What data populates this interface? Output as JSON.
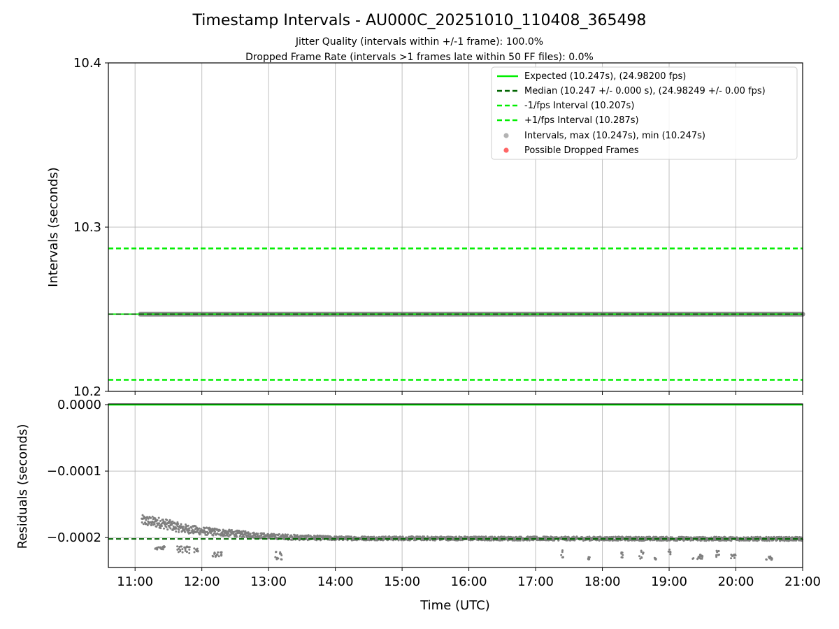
{
  "chart_data": [
    {
      "type": "line",
      "panel": "top",
      "title": "Timestamp Intervals - AU000C_20251010_110408_365498",
      "subtitle_lines": [
        "Jitter Quality (intervals within +/-1 frame): 100.0%",
        "Dropped Frame Rate (intervals >1 frames late within 50 FF files): 0.0%"
      ],
      "xlabel": "",
      "ylabel": "Intervals (seconds)",
      "xlim_hours": [
        10.6,
        21.0
      ],
      "ylim": [
        10.2,
        10.4
      ],
      "yticks": [
        10.2,
        10.3,
        10.4
      ],
      "ytick_labels": [
        "10.2",
        "10.3",
        "10.4"
      ],
      "grid": true,
      "legend_position": "top-right",
      "legend": [
        {
          "label": "Expected (10.247s), (24.98200 fps)",
          "style": "solid",
          "color": "#00ee00"
        },
        {
          "label": "Median (10.247 +/- 0.000 s), (24.98249 +/- 0.00 fps)",
          "style": "dashed",
          "color": "#006400"
        },
        {
          "label": "-1/fps Interval (10.207s)",
          "style": "dashed",
          "color": "#00ee00"
        },
        {
          "label": "+1/fps Interval (10.287s)",
          "style": "dashed",
          "color": "#00ee00"
        },
        {
          "label": "Intervals, max (10.247s), min (10.247s)",
          "style": "marker",
          "color": "#808080"
        },
        {
          "label": "Possible Dropped Frames",
          "style": "marker",
          "color": "#ff0000"
        }
      ],
      "series": [
        {
          "name": "Expected",
          "y": 10.247
        },
        {
          "name": "Median",
          "y": 10.247
        },
        {
          "name": "-1/fps Interval",
          "y": 10.207
        },
        {
          "name": "+1/fps Interval",
          "y": 10.287
        },
        {
          "name": "Intervals",
          "x_start_hours": 11.08,
          "x_end_hours": 21.0,
          "y": 10.247
        }
      ]
    },
    {
      "type": "scatter",
      "panel": "bottom",
      "xlabel": "Time (UTC)",
      "ylabel": "Residuals (seconds)",
      "xlim_hours": [
        10.6,
        21.0
      ],
      "ylim": [
        -0.000245,
        1e-06
      ],
      "yticks": [
        0.0,
        -0.0001,
        -0.0002
      ],
      "ytick_labels": [
        "0.0000",
        "−0.0001",
        "−0.0002"
      ],
      "xticks_hours": [
        11,
        12,
        13,
        14,
        15,
        16,
        17,
        18,
        19,
        20,
        21
      ],
      "xtick_labels": [
        "11:00",
        "12:00",
        "13:00",
        "14:00",
        "15:00",
        "16:00",
        "17:00",
        "18:00",
        "19:00",
        "20:00",
        "21:00"
      ],
      "grid": true,
      "expected_residual": 0.0,
      "median_residual": -0.000202,
      "residual_band": [
        {
          "x": 11.1,
          "center": -0.000174,
          "spread": 8e-06
        },
        {
          "x": 11.4,
          "center": -0.000178,
          "spread": 8e-06
        },
        {
          "x": 11.7,
          "center": -0.000186,
          "spread": 7e-06
        },
        {
          "x": 12.0,
          "center": -0.00019,
          "spread": 6e-06
        },
        {
          "x": 12.5,
          "center": -0.000194,
          "spread": 5e-06
        },
        {
          "x": 13.0,
          "center": -0.000198,
          "spread": 4e-06
        },
        {
          "x": 13.5,
          "center": -0.0002,
          "spread": 4e-06
        },
        {
          "x": 14.0,
          "center": -0.000201,
          "spread": 3e-06
        },
        {
          "x": 21.0,
          "center": -0.000202,
          "spread": 3e-06
        }
      ],
      "outlier_clusters": [
        {
          "x": [
            11.3,
            11.45
          ],
          "y": [
            -0.000212,
            -0.000218
          ]
        },
        {
          "x": [
            11.62,
            11.82
          ],
          "y": [
            -0.000213,
            -0.000224
          ]
        },
        {
          "x": [
            11.88,
            11.95
          ],
          "y": [
            -0.000216,
            -0.000222
          ]
        },
        {
          "x": [
            12.15,
            12.3
          ],
          "y": [
            -0.000222,
            -0.000229
          ]
        },
        {
          "x": [
            13.1,
            13.2
          ],
          "y": [
            -0.00022,
            -0.000233
          ]
        },
        {
          "x": [
            17.38,
            17.42
          ],
          "y": [
            -0.000218,
            -0.000233
          ]
        },
        {
          "x": [
            17.78,
            17.82
          ],
          "y": [
            -0.000228,
            -0.000233
          ]
        },
        {
          "x": [
            18.28,
            18.32
          ],
          "y": [
            -0.000218,
            -0.00023
          ]
        },
        {
          "x": [
            18.55,
            18.62
          ],
          "y": [
            -0.000218,
            -0.000232
          ]
        },
        {
          "x": [
            18.78,
            18.82
          ],
          "y": [
            -0.000229,
            -0.000233
          ]
        },
        {
          "x": [
            18.98,
            19.02
          ],
          "y": [
            -0.000218,
            -0.000232
          ]
        },
        {
          "x": [
            19.35,
            19.5
          ],
          "y": [
            -0.000225,
            -0.000233
          ]
        },
        {
          "x": [
            19.68,
            19.75
          ],
          "y": [
            -0.000218,
            -0.000232
          ]
        },
        {
          "x": [
            19.92,
            20.0
          ],
          "y": [
            -0.000225,
            -0.000234
          ]
        },
        {
          "x": [
            20.45,
            20.55
          ],
          "y": [
            -0.000228,
            -0.000234
          ]
        }
      ]
    }
  ]
}
